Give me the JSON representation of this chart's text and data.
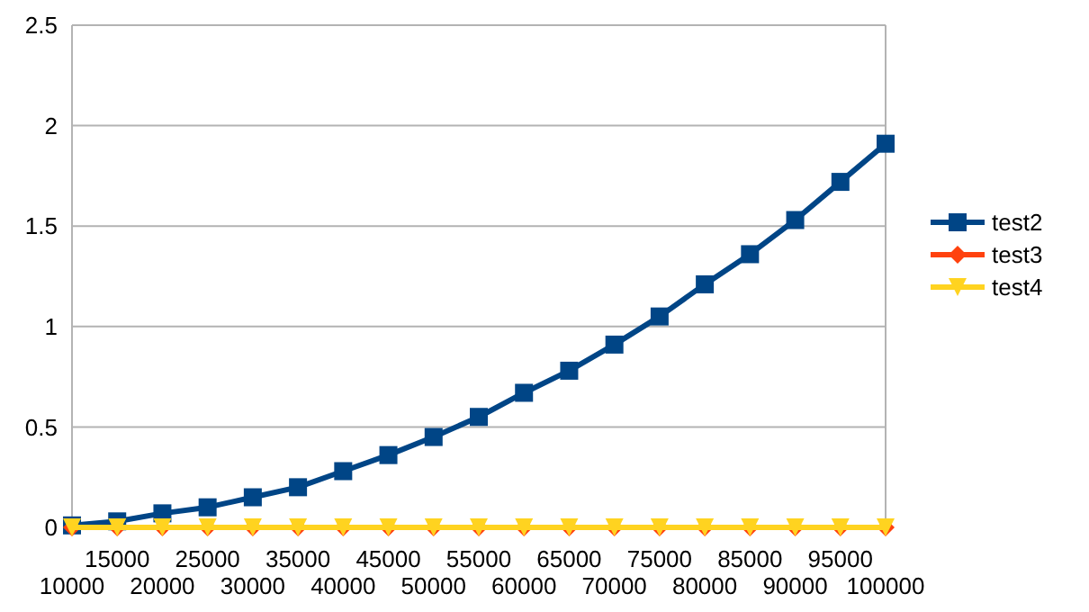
{
  "chart_data": {
    "type": "line",
    "categories": [
      "10000",
      "15000",
      "20000",
      "25000",
      "30000",
      "35000",
      "40000",
      "45000",
      "50000",
      "55000",
      "60000",
      "65000",
      "70000",
      "75000",
      "80000",
      "85000",
      "90000",
      "95000",
      "100000"
    ],
    "series": [
      {
        "name": "test2",
        "color": "#004586",
        "marker": "square",
        "values": [
          0.01,
          0.03,
          0.07,
          0.1,
          0.15,
          0.2,
          0.28,
          0.36,
          0.45,
          0.55,
          0.67,
          0.78,
          0.91,
          1.05,
          1.21,
          1.36,
          1.53,
          1.72,
          1.91
        ]
      },
      {
        "name": "test3",
        "color": "#ff420e",
        "marker": "diamond",
        "values": [
          0,
          0,
          0,
          0,
          0,
          0,
          0,
          0,
          0,
          0,
          0,
          0,
          0,
          0,
          0,
          0,
          0,
          0,
          0
        ]
      },
      {
        "name": "test4",
        "color": "#ffd320",
        "marker": "triangle",
        "values": [
          0,
          0,
          0,
          0,
          0,
          0,
          0,
          0,
          0,
          0,
          0,
          0,
          0,
          0,
          0,
          0,
          0,
          0,
          0
        ]
      }
    ],
    "ylim": [
      0,
      2.5
    ],
    "yticks": [
      0,
      0.5,
      1,
      1.5,
      2,
      2.5
    ],
    "grid": "y",
    "legend": "right"
  }
}
